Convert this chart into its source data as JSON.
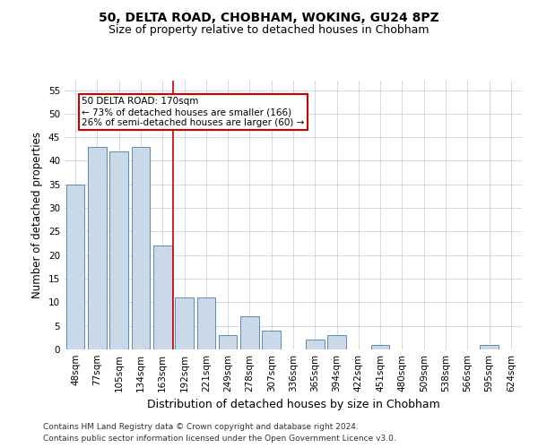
{
  "title1": "50, DELTA ROAD, CHOBHAM, WOKING, GU24 8PZ",
  "title2": "Size of property relative to detached houses in Chobham",
  "xlabel": "Distribution of detached houses by size in Chobham",
  "ylabel": "Number of detached properties",
  "categories": [
    "48sqm",
    "77sqm",
    "105sqm",
    "134sqm",
    "163sqm",
    "192sqm",
    "221sqm",
    "249sqm",
    "278sqm",
    "307sqm",
    "336sqm",
    "365sqm",
    "394sqm",
    "422sqm",
    "451sqm",
    "480sqm",
    "509sqm",
    "538sqm",
    "566sqm",
    "595sqm",
    "624sqm"
  ],
  "values": [
    35,
    43,
    42,
    43,
    22,
    11,
    11,
    3,
    7,
    4,
    0,
    2,
    3,
    0,
    1,
    0,
    0,
    0,
    0,
    1,
    0
  ],
  "bar_color": "#c9d9e8",
  "bar_edge_color": "#5b8db8",
  "vline_color": "#cc0000",
  "annotation_text": "50 DELTA ROAD: 170sqm\n← 73% of detached houses are smaller (166)\n26% of semi-detached houses are larger (60) →",
  "annotation_box_color": "#cc0000",
  "ylim": [
    0,
    57
  ],
  "yticks": [
    0,
    5,
    10,
    15,
    20,
    25,
    30,
    35,
    40,
    45,
    50,
    55
  ],
  "footer1": "Contains HM Land Registry data © Crown copyright and database right 2024.",
  "footer2": "Contains public sector information licensed under the Open Government Licence v3.0.",
  "bg_color": "#ffffff",
  "grid_color": "#c8d4e0",
  "title1_fontsize": 10,
  "title2_fontsize": 9,
  "axis_label_fontsize": 8.5,
  "tick_fontsize": 7.5,
  "footer_fontsize": 6.5,
  "annotation_fontsize": 7.5
}
